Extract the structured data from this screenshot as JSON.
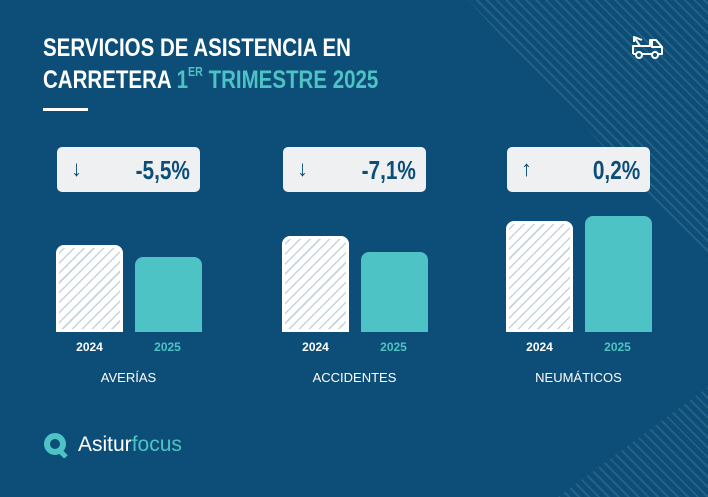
{
  "title": {
    "line1": "SERVICIOS DE ASISTENCIA EN",
    "line2_white": "CARRETERA",
    "line2_accent_num": "1",
    "line2_accent_sup": "ER",
    "line2_accent": "TRIMESTRE 2025"
  },
  "icon": "tow-truck-icon",
  "colors": {
    "background": "#0c4e77",
    "accent": "#4ec3c6",
    "bar_2024": "#ffffff hatched",
    "card": "#eef0f2"
  },
  "chart_data": {
    "type": "bar",
    "title": "",
    "years": [
      "2024",
      "2025"
    ],
    "groups": [
      {
        "category": "AVERÍAS",
        "change": "-5,5%",
        "direction": "down",
        "values": [
          100,
          86
        ]
      },
      {
        "category": "ACCIDENTES",
        "change": "-7,1%",
        "direction": "down",
        "values": [
          110,
          92
        ]
      },
      {
        "category": "NEUMÁTICOS",
        "change": "0,2%",
        "direction": "up",
        "values": [
          128,
          133
        ]
      }
    ],
    "grid": false,
    "axes": false
  },
  "logo": {
    "part1": "Asitur",
    "part2": "focus"
  }
}
